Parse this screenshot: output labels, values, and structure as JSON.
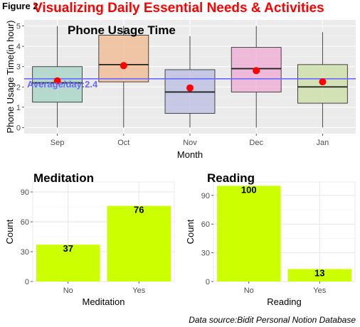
{
  "figure_label": "Figure 2",
  "main_title": "Visualizing Daily Essential Needs & Activities",
  "source": "Data source:Bidit Personal Notion Database",
  "chart_data": [
    {
      "type": "box",
      "title": "Phone Usage Time",
      "xlabel": "Month",
      "ylabel": "Phone Usage Time(in hour)",
      "ylim": [
        -0.3,
        5.3
      ],
      "yticks": [
        0,
        1,
        2,
        3,
        4,
        5
      ],
      "categories": [
        "Sep",
        "Oct",
        "Nov",
        "Dec",
        "Jan"
      ],
      "fill_colors": [
        "#a8d5c5",
        "#f0bc94",
        "#bebfe2",
        "#f0aed4",
        "#cde0a7"
      ],
      "boxes": [
        {
          "min": 0,
          "q1": 1.25,
          "median": 2.2,
          "q3": 3.0,
          "max": 5.0,
          "mean": 2.3
        },
        {
          "min": 0,
          "q1": 2.25,
          "median": 3.1,
          "q3": 4.55,
          "max": 5.0,
          "mean": 3.05
        },
        {
          "min": 0,
          "q1": 0.7,
          "median": 1.75,
          "q3": 2.85,
          "max": 4.5,
          "mean": 1.95
        },
        {
          "min": 0,
          "q1": 1.75,
          "median": 2.9,
          "q3": 3.95,
          "max": 5.0,
          "mean": 2.8
        },
        {
          "min": 0,
          "q1": 1.2,
          "median": 2.0,
          "q3": 3.1,
          "max": 4.7,
          "mean": 2.25
        }
      ],
      "mean_color": "#ff0000",
      "reference_line": {
        "value": 2.4,
        "label": "Average/day:2.4",
        "color": "#6a6aff"
      },
      "grid": true
    },
    {
      "type": "bar",
      "title": "Meditation",
      "xlabel": "Meditation",
      "ylabel": "Count",
      "categories": [
        "No",
        "Yes"
      ],
      "values": [
        37,
        76
      ],
      "ylim": [
        0,
        100
      ],
      "yticks": [
        0,
        30,
        60,
        90
      ],
      "bar_color": "#ccff00",
      "grid": true
    },
    {
      "type": "bar",
      "title": "Reading",
      "xlabel": "Reading",
      "ylabel": "Count",
      "categories": [
        "No",
        "Yes"
      ],
      "values": [
        100,
        13
      ],
      "ylim": [
        0,
        104
      ],
      "yticks": [
        0,
        30,
        60,
        90
      ],
      "bar_color": "#ccff00",
      "grid": true
    }
  ]
}
